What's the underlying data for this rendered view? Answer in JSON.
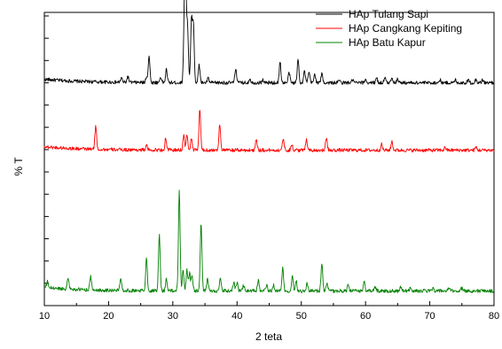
{
  "chart_data": {
    "type": "line",
    "title": "",
    "xlabel": "2 teta",
    "ylabel": "% T",
    "xlim": [
      10,
      80
    ],
    "x_ticks": [
      10,
      20,
      30,
      40,
      50,
      60,
      70,
      80
    ],
    "y_tick_labels": "none",
    "grid": false,
    "legend_position": "top-right",
    "series": [
      {
        "name": "HAp Tulang Sapi",
        "color": "#000000",
        "baseline": 0.76,
        "peaks": [
          [
            22.0,
            0.015
          ],
          [
            23.0,
            0.02
          ],
          [
            25.9,
            0.02
          ],
          [
            26.3,
            0.09
          ],
          [
            28.1,
            0.02
          ],
          [
            29.0,
            0.045
          ],
          [
            31.8,
            0.22
          ],
          [
            32.0,
            0.3
          ],
          [
            32.3,
            0.18
          ],
          [
            32.9,
            0.21
          ],
          [
            33.2,
            0.2
          ],
          [
            34.1,
            0.06
          ],
          [
            35.5,
            0.015
          ],
          [
            39.8,
            0.05
          ],
          [
            42.0,
            0.015
          ],
          [
            44.0,
            0.01
          ],
          [
            46.7,
            0.07
          ],
          [
            48.1,
            0.035
          ],
          [
            49.5,
            0.08
          ],
          [
            50.5,
            0.04
          ],
          [
            51.2,
            0.035
          ],
          [
            52.1,
            0.03
          ],
          [
            53.2,
            0.03
          ],
          [
            55.9,
            0.01
          ],
          [
            58.0,
            0.01
          ],
          [
            60.0,
            0.012
          ],
          [
            61.7,
            0.018
          ],
          [
            63.0,
            0.018
          ],
          [
            64.1,
            0.02
          ],
          [
            65.0,
            0.015
          ],
          [
            71.6,
            0.01
          ],
          [
            74.0,
            0.01
          ],
          [
            76.0,
            0.01
          ],
          [
            77.2,
            0.012
          ],
          [
            78.2,
            0.01
          ]
        ]
      },
      {
        "name": "HAp Cangkang Kepiting",
        "color": "#ff0000",
        "baseline": 0.53,
        "peaks": [
          [
            18.0,
            0.08
          ],
          [
            25.9,
            0.015
          ],
          [
            28.9,
            0.04
          ],
          [
            31.7,
            0.05
          ],
          [
            32.2,
            0.05
          ],
          [
            32.9,
            0.04
          ],
          [
            34.2,
            0.14
          ],
          [
            37.3,
            0.09
          ],
          [
            43.0,
            0.04
          ],
          [
            47.2,
            0.04
          ],
          [
            48.5,
            0.02
          ],
          [
            50.8,
            0.04
          ],
          [
            53.9,
            0.04
          ],
          [
            62.5,
            0.02
          ],
          [
            64.1,
            0.03
          ],
          [
            72.4,
            0.01
          ],
          [
            77.2,
            0.01
          ]
        ]
      },
      {
        "name": "HAp Batu Kapur",
        "color": "#008000",
        "baseline": 0.05,
        "peaks": [
          [
            10.5,
            0.02
          ],
          [
            13.7,
            0.04
          ],
          [
            17.2,
            0.045
          ],
          [
            21.9,
            0.045
          ],
          [
            25.9,
            0.11
          ],
          [
            27.9,
            0.19
          ],
          [
            29.0,
            0.04
          ],
          [
            31.0,
            0.34
          ],
          [
            31.6,
            0.07
          ],
          [
            32.2,
            0.07
          ],
          [
            32.6,
            0.06
          ],
          [
            33.0,
            0.05
          ],
          [
            34.4,
            0.23
          ],
          [
            35.4,
            0.04
          ],
          [
            37.4,
            0.04
          ],
          [
            39.5,
            0.03
          ],
          [
            40.0,
            0.03
          ],
          [
            41.0,
            0.02
          ],
          [
            43.3,
            0.035
          ],
          [
            44.6,
            0.02
          ],
          [
            45.7,
            0.02
          ],
          [
            47.1,
            0.08
          ],
          [
            48.6,
            0.05
          ],
          [
            49.2,
            0.035
          ],
          [
            50.9,
            0.025
          ],
          [
            53.2,
            0.09
          ],
          [
            54.0,
            0.025
          ],
          [
            57.3,
            0.02
          ],
          [
            59.8,
            0.03
          ],
          [
            61.5,
            0.015
          ],
          [
            65.5,
            0.012
          ],
          [
            67.0,
            0.012
          ],
          [
            70.5,
            0.01
          ],
          [
            73.0,
            0.01
          ],
          [
            75.0,
            0.01
          ]
        ]
      }
    ]
  }
}
